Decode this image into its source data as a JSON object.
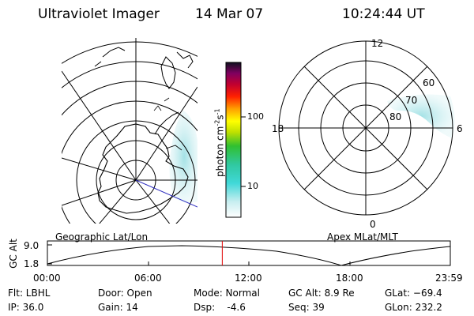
{
  "header": {
    "instrument": "Ultraviolet Imager",
    "date": "14 Mar 07",
    "time": "10:24:44 UT"
  },
  "colorbar": {
    "unit_label": "photon cm",
    "unit_exp1": "-2",
    "unit_s": "s",
    "unit_exp2": "-1",
    "tick_100": "100",
    "tick_10": "10"
  },
  "polar_plot": {
    "title": "Apex MLat/MLT",
    "mlt_labels": {
      "top": "12",
      "left": "18",
      "right": "6",
      "bottom": "0"
    },
    "lat_labels": {
      "lat60": "60",
      "lat70": "70",
      "lat80": "80"
    }
  },
  "geo_plot": {
    "title": "Geographic Lat/Lon"
  },
  "orbit": {
    "y_axis_label": "GC Alt",
    "y_ticks": [
      "9.0",
      "1.8"
    ],
    "x_ticks": [
      "00:00",
      "06:00",
      "12:00",
      "18:00",
      "23:59"
    ],
    "current_time_hours": 10.41
  },
  "info": {
    "filter": "Flt: LBHL",
    "ip": "IP: 36.0",
    "door": "Door: Open",
    "gain": "Gain: 14",
    "mode": "Mode: Normal",
    "dsp": "Dsp:    -4.6",
    "gc_alt": "GC Alt: 8.9 Re",
    "seq": "Seq: 39",
    "glat": "GLat: −69.4",
    "glon": "GLon: 232.2"
  },
  "colors": {
    "aurora": "#b4e0e4",
    "aurora_bright": "#7fd8dc",
    "current_time_line": "#e00000",
    "nadir_line": "#3030c0"
  }
}
